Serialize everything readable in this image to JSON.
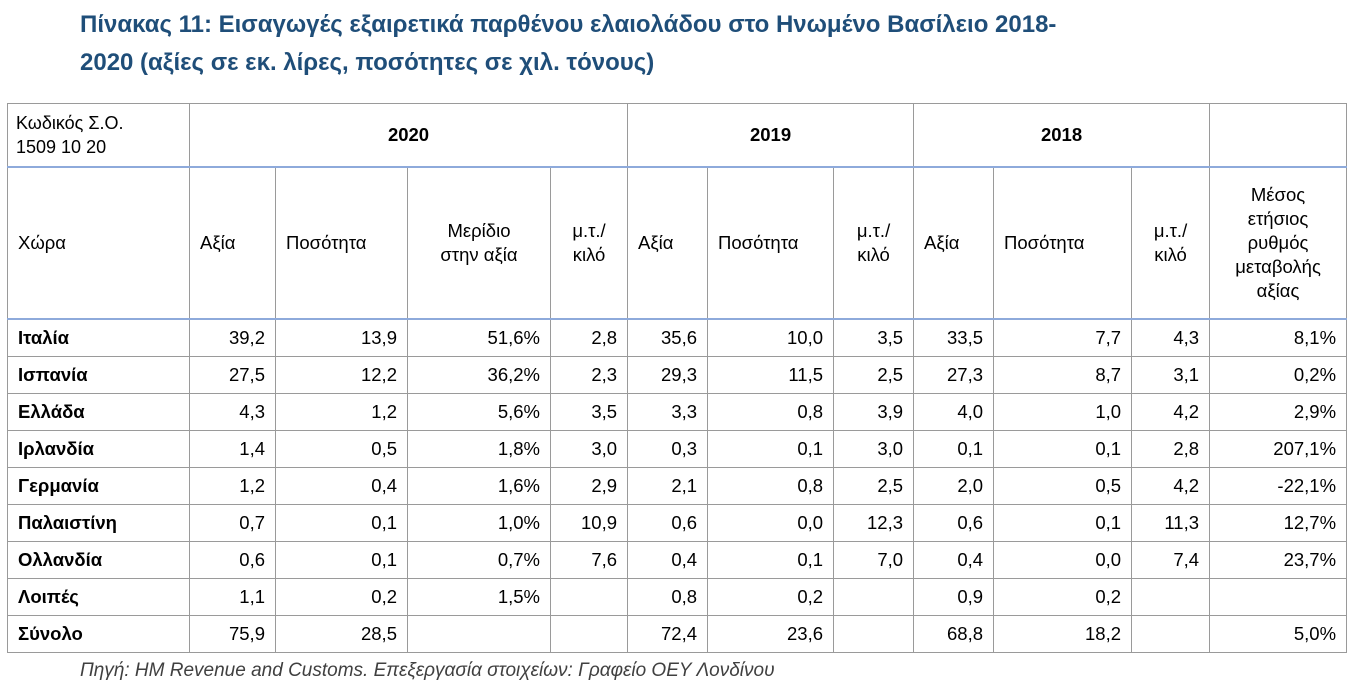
{
  "title": {
    "line1": "Πίνακας 11: Εισαγωγές εξαιρετικά παρθένου ελαιολάδου στο Ηνωμένο Βασίλειο 2018-",
    "line2": "2020 (αξίες σε εκ. λίρες, ποσότητες σε χιλ. τόνους)"
  },
  "table": {
    "code_line1": "Κωδικός Σ.Ο.",
    "code_line2": "1509 10 20",
    "years": [
      "2020",
      "2019",
      "2018"
    ],
    "headers": {
      "country": "Χώρα",
      "value": "Αξία",
      "quantity": "Ποσότητα",
      "share_line1": "Μερίδιο",
      "share_line2": "στην αξία",
      "unit_line1": "μ.τ./",
      "unit_line2": "κιλό",
      "growth_line1": "Μέσος",
      "growth_line2": "ετήσιος",
      "growth_line3": "ρυθμός",
      "growth_line4": "μεταβολής",
      "growth_line5": "αξίας"
    },
    "rows": [
      {
        "country": "Ιταλία",
        "v20": "39,2",
        "q20": "13,9",
        "s20": "51,6%",
        "u20": "2,8",
        "v19": "35,6",
        "q19": "10,0",
        "u19": "3,5",
        "v18": "33,5",
        "q18": "7,7",
        "u18": "4,3",
        "growth": "8,1%"
      },
      {
        "country": "Ισπανία",
        "v20": "27,5",
        "q20": "12,2",
        "s20": "36,2%",
        "u20": "2,3",
        "v19": "29,3",
        "q19": "11,5",
        "u19": "2,5",
        "v18": "27,3",
        "q18": "8,7",
        "u18": "3,1",
        "growth": "0,2%"
      },
      {
        "country": "Ελλάδα",
        "v20": "4,3",
        "q20": "1,2",
        "s20": "5,6%",
        "u20": "3,5",
        "v19": "3,3",
        "q19": "0,8",
        "u19": "3,9",
        "v18": "4,0",
        "q18": "1,0",
        "u18": "4,2",
        "growth": "2,9%"
      },
      {
        "country": "Ιρλανδία",
        "v20": "1,4",
        "q20": "0,5",
        "s20": "1,8%",
        "u20": "3,0",
        "v19": "0,3",
        "q19": "0,1",
        "u19": "3,0",
        "v18": "0,1",
        "q18": "0,1",
        "u18": "2,8",
        "growth": "207,1%"
      },
      {
        "country": "Γερμανία",
        "v20": "1,2",
        "q20": "0,4",
        "s20": "1,6%",
        "u20": "2,9",
        "v19": "2,1",
        "q19": "0,8",
        "u19": "2,5",
        "v18": "2,0",
        "q18": "0,5",
        "u18": "4,2",
        "growth": "-22,1%"
      },
      {
        "country": "Παλαιστίνη",
        "v20": "0,7",
        "q20": "0,1",
        "s20": "1,0%",
        "u20": "10,9",
        "v19": "0,6",
        "q19": "0,0",
        "u19": "12,3",
        "v18": "0,6",
        "q18": "0,1",
        "u18": "11,3",
        "growth": "12,7%"
      },
      {
        "country": "Ολλανδία",
        "v20": "0,6",
        "q20": "0,1",
        "s20": "0,7%",
        "u20": "7,6",
        "v19": "0,4",
        "q19": "0,1",
        "u19": "7,0",
        "v18": "0,4",
        "q18": "0,0",
        "u18": "7,4",
        "growth": "23,7%"
      },
      {
        "country": "Λοιπές",
        "v20": "1,1",
        "q20": "0,2",
        "s20": "1,5%",
        "u20": "",
        "v19": "0,8",
        "q19": "0,2",
        "u19": "",
        "v18": "0,9",
        "q18": "0,2",
        "u18": "",
        "growth": ""
      },
      {
        "country": "Σύνολο",
        "v20": "75,9",
        "q20": "28,5",
        "s20": "",
        "u20": "",
        "v19": "72,4",
        "q19": "23,6",
        "u19": "",
        "v18": "68,8",
        "q18": "18,2",
        "u18": "",
        "growth": "5,0%"
      }
    ]
  },
  "source": "Πηγή: HM Revenue and Customs. Επεξεργασία στοιχείων: Γραφείο ΟΕΥ Λονδίνου"
}
